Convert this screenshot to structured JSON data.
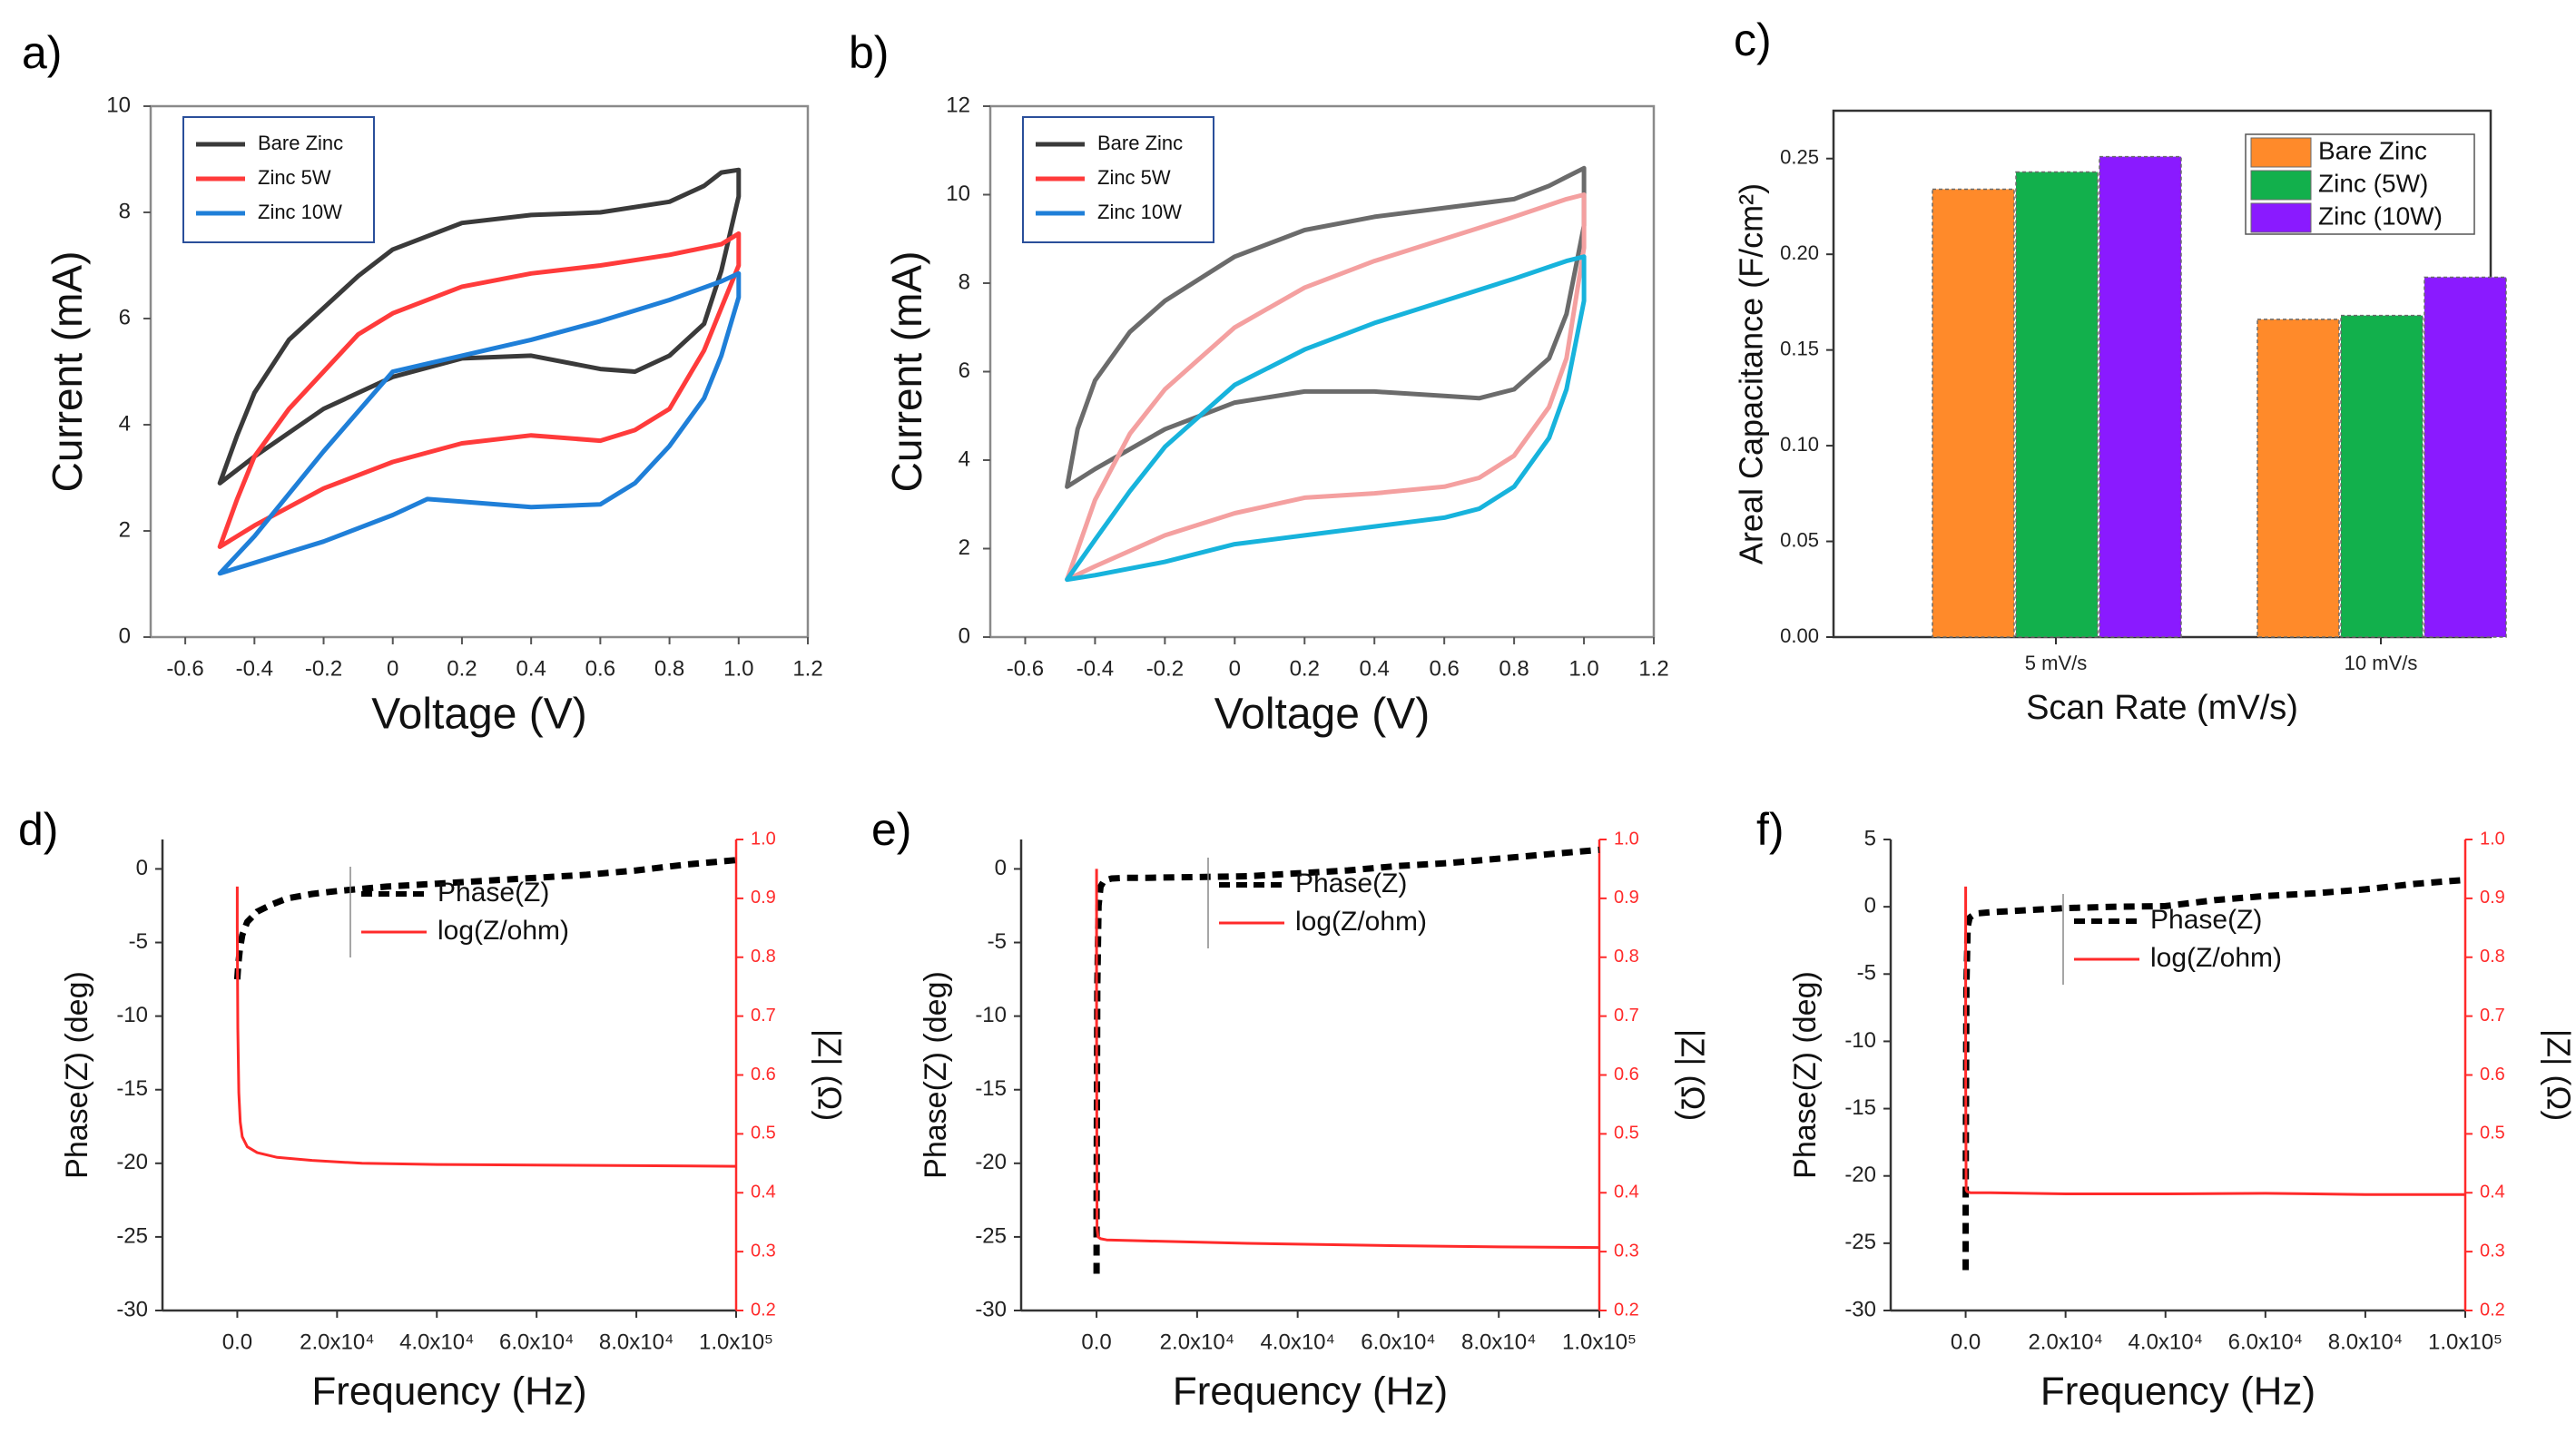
{
  "chart_data": [
    {
      "id": "a",
      "panel_label": "a)",
      "type": "line",
      "title": "",
      "xlabel": "Voltage (V)",
      "ylabel": "Current (mA)",
      "xlim": [
        -0.7,
        1.2
      ],
      "ylim": [
        0,
        10
      ],
      "xticks": [
        -0.6,
        -0.4,
        -0.2,
        0,
        0.2,
        0.4,
        0.6,
        0.8,
        1.0,
        1.2
      ],
      "xtick_labels": [
        "-0.6",
        "-0.4",
        "-0.2",
        "0",
        "0.2",
        "0.4",
        "0.6",
        "0.8",
        "1.0",
        "1.2"
      ],
      "yticks": [
        0,
        2,
        4,
        6,
        8,
        10
      ],
      "ytick_labels": [
        "0",
        "2",
        "4",
        "6",
        "8",
        "10"
      ],
      "legend_position": "top-left",
      "series": [
        {
          "name": "Bare Zinc",
          "color": "#3a3a3a",
          "x": [
            -0.5,
            -0.45,
            -0.4,
            -0.3,
            -0.2,
            -0.1,
            0,
            0.2,
            0.4,
            0.6,
            0.8,
            0.9,
            0.95,
            1.0,
            1.0,
            0.95,
            0.9,
            0.8,
            0.7,
            0.6,
            0.4,
            0.2,
            0,
            -0.2,
            -0.4,
            -0.5
          ],
          "y": [
            2.9,
            3.8,
            4.6,
            5.6,
            6.2,
            6.8,
            7.3,
            7.8,
            7.95,
            8.0,
            8.2,
            8.5,
            8.75,
            8.8,
            8.3,
            6.9,
            5.9,
            5.3,
            5.0,
            5.05,
            5.3,
            5.25,
            4.9,
            4.3,
            3.4,
            2.9
          ]
        },
        {
          "name": "Zinc 5W",
          "color": "#ff3b3b",
          "x": [
            -0.5,
            -0.45,
            -0.4,
            -0.3,
            -0.2,
            -0.1,
            0,
            0.2,
            0.4,
            0.6,
            0.8,
            0.95,
            1.0,
            1.0,
            0.95,
            0.9,
            0.8,
            0.7,
            0.6,
            0.4,
            0.2,
            0,
            -0.2,
            -0.4,
            -0.5
          ],
          "y": [
            1.7,
            2.6,
            3.4,
            4.3,
            5.0,
            5.7,
            6.1,
            6.6,
            6.85,
            7.0,
            7.2,
            7.4,
            7.6,
            7.0,
            6.2,
            5.4,
            4.3,
            3.9,
            3.7,
            3.8,
            3.65,
            3.3,
            2.8,
            2.1,
            1.7
          ]
        },
        {
          "name": "Zinc 10W",
          "color": "#1f7fd8",
          "x": [
            -0.5,
            -0.4,
            -0.2,
            0,
            0.2,
            0.4,
            0.6,
            0.8,
            0.95,
            1.0,
            1.0,
            0.95,
            0.9,
            0.8,
            0.7,
            0.6,
            0.4,
            0.2,
            0.1,
            0,
            -0.2,
            -0.4,
            -0.5
          ],
          "y": [
            1.2,
            1.9,
            3.5,
            5.0,
            5.3,
            5.6,
            5.95,
            6.35,
            6.7,
            6.85,
            6.4,
            5.3,
            4.5,
            3.6,
            2.9,
            2.5,
            2.45,
            2.55,
            2.6,
            2.3,
            1.8,
            1.4,
            1.2
          ]
        }
      ]
    },
    {
      "id": "b",
      "panel_label": "b)",
      "type": "line",
      "title": "",
      "xlabel": "Voltage (V)",
      "ylabel": "Current (mA)",
      "xlim": [
        -0.7,
        1.2
      ],
      "ylim": [
        0,
        12
      ],
      "xticks": [
        -0.6,
        -0.4,
        -0.2,
        0,
        0.2,
        0.4,
        0.6,
        0.8,
        1.0,
        1.2
      ],
      "xtick_labels": [
        "-0.6",
        "-0.4",
        "-0.2",
        "0",
        "0.2",
        "0.4",
        "0.6",
        "0.8",
        "1.0",
        "1.2"
      ],
      "yticks": [
        0,
        2,
        4,
        6,
        8,
        10,
        12
      ],
      "ytick_labels": [
        "0",
        "2",
        "4",
        "6",
        "8",
        "10",
        "12"
      ],
      "legend_position": "top-left",
      "series": [
        {
          "name": "Bare Zinc",
          "color": "#3a3a3a",
          "plot_color": "#6b6b6b",
          "x": [
            -0.48,
            -0.45,
            -0.4,
            -0.3,
            -0.2,
            -0.1,
            0,
            0.2,
            0.4,
            0.6,
            0.8,
            0.9,
            0.95,
            1.0,
            1.0,
            0.95,
            0.9,
            0.8,
            0.7,
            0.6,
            0.4,
            0.2,
            0,
            -0.2,
            -0.4,
            -0.48
          ],
          "y": [
            3.4,
            4.7,
            5.8,
            6.9,
            7.6,
            8.1,
            8.6,
            9.2,
            9.5,
            9.7,
            9.9,
            10.2,
            10.4,
            10.6,
            9.3,
            7.3,
            6.3,
            5.6,
            5.4,
            5.45,
            5.55,
            5.55,
            5.3,
            4.7,
            3.8,
            3.4
          ]
        },
        {
          "name": "Zinc 5W",
          "color": "#ff3b3b",
          "plot_color": "#f4a0a0",
          "x": [
            -0.48,
            -0.4,
            -0.3,
            -0.2,
            -0.1,
            0,
            0.2,
            0.4,
            0.6,
            0.8,
            0.95,
            1.0,
            1.0,
            0.95,
            0.9,
            0.8,
            0.7,
            0.6,
            0.4,
            0.2,
            0,
            -0.2,
            -0.4,
            -0.48
          ],
          "y": [
            1.3,
            3.1,
            4.6,
            5.6,
            6.3,
            7.0,
            7.9,
            8.5,
            9.0,
            9.5,
            9.9,
            10.0,
            8.8,
            6.3,
            5.2,
            4.1,
            3.6,
            3.4,
            3.25,
            3.15,
            2.8,
            2.3,
            1.6,
            1.3
          ]
        },
        {
          "name": "Zinc 10W",
          "color": "#1f7fd8",
          "plot_color": "#17b3dc",
          "x": [
            -0.48,
            -0.4,
            -0.3,
            -0.2,
            -0.1,
            0,
            0.2,
            0.4,
            0.6,
            0.8,
            0.95,
            1.0,
            1.0,
            0.95,
            0.9,
            0.8,
            0.7,
            0.6,
            0.4,
            0.2,
            0,
            -0.2,
            -0.4,
            -0.48
          ],
          "y": [
            1.3,
            2.2,
            3.3,
            4.3,
            5.0,
            5.7,
            6.5,
            7.1,
            7.6,
            8.1,
            8.5,
            8.6,
            7.6,
            5.6,
            4.5,
            3.4,
            2.9,
            2.7,
            2.5,
            2.3,
            2.1,
            1.7,
            1.4,
            1.3
          ]
        }
      ]
    },
    {
      "id": "c",
      "panel_label": "c)",
      "type": "bar",
      "title": "",
      "xlabel": "Scan Rate (mV/s)",
      "ylabel": "Areal Capacitance (F/cm²)",
      "ylim": [
        0,
        0.275
      ],
      "yticks": [
        0,
        0.05,
        0.1,
        0.15,
        0.2,
        0.25
      ],
      "ytick_labels": [
        "0.00",
        "0.05",
        "0.10",
        "0.15",
        "0.20",
        "0.25"
      ],
      "categories": [
        "5 mV/s",
        "10 mV/s"
      ],
      "legend_position": "top-right",
      "series": [
        {
          "name": "Bare Zinc",
          "color": "#ff8a2a",
          "values": [
            0.234,
            0.166
          ]
        },
        {
          "name": "Zinc (5W)",
          "color": "#12b04c",
          "values": [
            0.243,
            0.168
          ]
        },
        {
          "name": "Zinc (10W)",
          "color": "#8a1aff",
          "values": [
            0.251,
            0.188
          ]
        }
      ]
    },
    {
      "id": "d",
      "panel_label": "d)",
      "type": "line",
      "title": "",
      "xlabel": "Frequency (Hz)",
      "ylabel": "Phase(Z) (deg)",
      "y2label": "|Z| (Ω)",
      "xlim": [
        -15000,
        100000
      ],
      "ylim": [
        -30,
        2
      ],
      "y2lim": [
        0.2,
        1.0
      ],
      "xticks": [
        0,
        20000,
        40000,
        60000,
        80000,
        100000
      ],
      "xtick_labels": [
        "0.0",
        "2.0x10⁴",
        "4.0x10⁴",
        "6.0x10⁴",
        "8.0x10⁴",
        "1.0x10⁵"
      ],
      "yticks": [
        -30,
        -25,
        -20,
        -15,
        -10,
        -5,
        0
      ],
      "ytick_labels": [
        "-30",
        "-25",
        "-20",
        "-15",
        "-10",
        "-5",
        "0"
      ],
      "y2ticks": [
        0.2,
        0.3,
        0.4,
        0.5,
        0.6,
        0.7,
        0.8,
        0.9,
        1.0
      ],
      "y2tick_labels": [
        "0.2",
        "0.3",
        "0.4",
        "0.5",
        "0.6",
        "0.7",
        "0.8",
        "0.9",
        "1.0"
      ],
      "legend_position": "top-center",
      "series": [
        {
          "name": "Phase(Z)",
          "color": "#000000",
          "axis": "left",
          "style": "dashed",
          "x": [
            0,
            200,
            500,
            1000,
            2000,
            4000,
            7000,
            10000,
            15000,
            20000,
            30000,
            40000,
            50000,
            60000,
            70000,
            80000,
            90000,
            100000
          ],
          "y": [
            -7.5,
            -6.5,
            -5.5,
            -4.5,
            -3.6,
            -2.9,
            -2.4,
            -2.0,
            -1.7,
            -1.5,
            -1.2,
            -1.0,
            -0.8,
            -0.6,
            -0.4,
            -0.1,
            0.3,
            0.6
          ]
        },
        {
          "name": "log(Z/ohm)",
          "color": "#ff2a2a",
          "axis": "right",
          "style": "solid",
          "x": [
            0,
            0,
            100,
            300,
            600,
            1000,
            2000,
            4000,
            8000,
            15000,
            25000,
            40000,
            60000,
            80000,
            100000
          ],
          "y": [
            0.92,
            0.85,
            0.68,
            0.57,
            0.52,
            0.495,
            0.478,
            0.468,
            0.46,
            0.455,
            0.45,
            0.448,
            0.447,
            0.446,
            0.445
          ]
        }
      ]
    },
    {
      "id": "e",
      "panel_label": "e)",
      "type": "line",
      "title": "",
      "xlabel": "Frequency (Hz)",
      "ylabel": "Phase(Z) (deg)",
      "y2label": "|Z| (Ω)",
      "xlim": [
        -15000,
        100000
      ],
      "ylim": [
        -30,
        2
      ],
      "y2lim": [
        0.2,
        1.0
      ],
      "xticks": [
        0,
        20000,
        40000,
        60000,
        80000,
        100000
      ],
      "xtick_labels": [
        "0.0",
        "2.0x10⁴",
        "4.0x10⁴",
        "6.0x10⁴",
        "8.0x10⁴",
        "1.0x10⁵"
      ],
      "yticks": [
        -30,
        -25,
        -20,
        -15,
        -10,
        -5,
        0
      ],
      "ytick_labels": [
        "-30",
        "-25",
        "-20",
        "-15",
        "-10",
        "-5",
        "0"
      ],
      "y2ticks": [
        0.2,
        0.3,
        0.4,
        0.5,
        0.6,
        0.7,
        0.8,
        0.9,
        1.0
      ],
      "y2tick_labels": [
        "0.2",
        "0.3",
        "0.4",
        "0.5",
        "0.6",
        "0.7",
        "0.8",
        "0.9",
        "1.0"
      ],
      "legend_position": "top-center",
      "series": [
        {
          "name": "Phase(Z)",
          "color": "#000000",
          "axis": "left",
          "style": "dashed",
          "x": [
            0,
            0,
            150,
            400,
            800,
            1500,
            3000,
            6000,
            10000,
            20000,
            30000,
            40000,
            50000,
            60000,
            70000,
            80000,
            90000,
            100000
          ],
          "y": [
            -27.5,
            -23,
            -8,
            -2.5,
            -1.2,
            -0.8,
            -0.65,
            -0.6,
            -0.6,
            -0.55,
            -0.5,
            -0.3,
            -0.1,
            0.2,
            0.4,
            0.7,
            1.0,
            1.3
          ]
        },
        {
          "name": "log(Z/ohm)",
          "color": "#ff2a2a",
          "axis": "right",
          "style": "solid",
          "x": [
            0,
            0,
            100,
            300,
            800,
            2000,
            10000,
            30000,
            60000,
            80000,
            100000
          ],
          "y": [
            0.95,
            0.7,
            0.34,
            0.325,
            0.322,
            0.32,
            0.318,
            0.314,
            0.31,
            0.308,
            0.307
          ]
        }
      ]
    },
    {
      "id": "f",
      "panel_label": "f)",
      "type": "line",
      "title": "",
      "xlabel": "Frequency (Hz)",
      "ylabel": "Phase(Z) (deg)",
      "y2label": "|Z| (Ω)",
      "xlim": [
        -15000,
        100000
      ],
      "ylim": [
        -30,
        5
      ],
      "y2lim": [
        0.2,
        1.0
      ],
      "xticks": [
        0,
        20000,
        40000,
        60000,
        80000,
        100000
      ],
      "xtick_labels": [
        "0.0",
        "2.0x10⁴",
        "4.0x10⁴",
        "6.0x10⁴",
        "8.0x10⁴",
        "1.0x10⁵"
      ],
      "yticks": [
        -30,
        -25,
        -20,
        -15,
        -10,
        -5,
        0,
        5
      ],
      "ytick_labels": [
        "-30",
        "-25",
        "-20",
        "-15",
        "-10",
        "-5",
        "0",
        "5"
      ],
      "y2ticks": [
        0.2,
        0.3,
        0.4,
        0.5,
        0.6,
        0.7,
        0.8,
        0.9,
        1.0
      ],
      "y2tick_labels": [
        "0.2",
        "0.3",
        "0.4",
        "0.5",
        "0.6",
        "0.7",
        "0.8",
        "0.9",
        "1.0"
      ],
      "legend_position": "top-center",
      "series": [
        {
          "name": "Phase(Z)",
          "color": "#000000",
          "axis": "left",
          "style": "dashed",
          "x": [
            0,
            0,
            150,
            400,
            800,
            2000,
            5000,
            10000,
            20000,
            30000,
            40000,
            50000,
            60000,
            70000,
            80000,
            90000,
            100000
          ],
          "y": [
            -27,
            -22,
            -6,
            -1.5,
            -0.8,
            -0.5,
            -0.4,
            -0.3,
            -0.1,
            0.0,
            0.05,
            0.5,
            0.8,
            1.0,
            1.3,
            1.7,
            2.0
          ]
        },
        {
          "name": "log(Z/ohm)",
          "color": "#ff2a2a",
          "axis": "right",
          "style": "solid",
          "x": [
            0,
            0,
            100,
            300,
            1000,
            5000,
            20000,
            40000,
            60000,
            80000,
            100000
          ],
          "y": [
            0.92,
            0.6,
            0.405,
            0.402,
            0.4,
            0.4,
            0.398,
            0.398,
            0.399,
            0.397,
            0.397
          ]
        }
      ]
    }
  ]
}
